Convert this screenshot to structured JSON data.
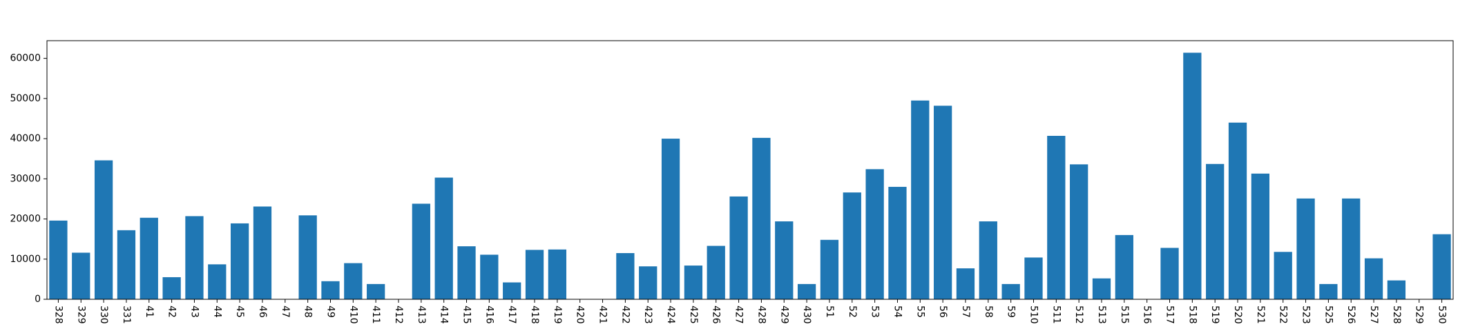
{
  "chart_data": {
    "type": "bar",
    "color": "#1f77b4",
    "title": "",
    "xlabel": "",
    "ylabel": "",
    "ylim": [
      0,
      64400
    ],
    "yticks": [
      0,
      10000,
      20000,
      30000,
      40000,
      50000,
      60000
    ],
    "ytick_labels": [
      "0",
      "10000",
      "20000",
      "30000",
      "40000",
      "50000",
      "60000"
    ],
    "grid": false,
    "categories": [
      "328",
      "329",
      "330",
      "331",
      "41",
      "42",
      "43",
      "44",
      "45",
      "46",
      "47",
      "48",
      "49",
      "410",
      "411",
      "412",
      "413",
      "414",
      "415",
      "416",
      "417",
      "418",
      "419",
      "420",
      "421",
      "422",
      "423",
      "424",
      "425",
      "426",
      "427",
      "428",
      "429",
      "430",
      "51",
      "52",
      "53",
      "54",
      "55",
      "56",
      "57",
      "58",
      "59",
      "510",
      "511",
      "512",
      "513",
      "515",
      "516",
      "517",
      "518",
      "519",
      "520",
      "521",
      "522",
      "523",
      "525",
      "526",
      "527",
      "528",
      "529",
      "530"
    ],
    "values": [
      19600,
      11600,
      34600,
      17200,
      20300,
      5500,
      20700,
      8700,
      18900,
      23100,
      0,
      20900,
      4500,
      9000,
      3800,
      0,
      23800,
      30300,
      13200,
      11100,
      4200,
      12300,
      12400,
      0,
      0,
      11500,
      8200,
      40000,
      8400,
      13300,
      25600,
      40200,
      19400,
      3800,
      14800,
      26600,
      32400,
      28000,
      49500,
      48200,
      7700,
      19400,
      3800,
      10400,
      40700,
      33600,
      5200,
      16000,
      0,
      12800,
      61400,
      33700,
      44000,
      31300,
      11800,
      25100,
      3800,
      25100,
      10200,
      4700,
      0,
      16200
    ]
  }
}
